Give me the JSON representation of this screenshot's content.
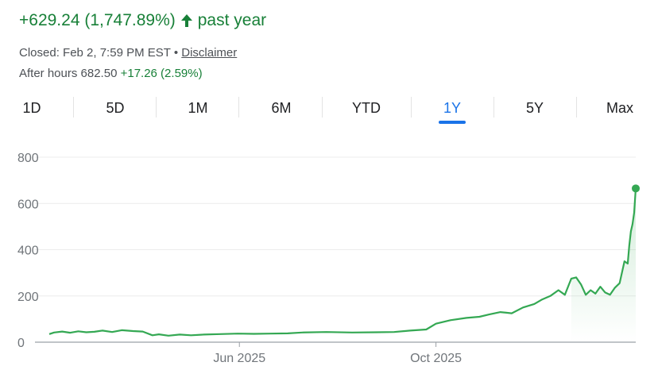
{
  "summary": {
    "change": "+629.24 (1,747.89%)",
    "period": "past year",
    "closed_text": "Closed: Feb 2, 7:59 PM EST •",
    "disclaimer": "Disclaimer",
    "after_hours_label": "After hours 682.50",
    "after_hours_change": "+17.26 (2.59%)"
  },
  "icons": {
    "up_arrow": "arrow-up-icon"
  },
  "colors": {
    "positive": "#188038",
    "line": "#34a853",
    "accent": "#1a73e8"
  },
  "tabs": [
    {
      "label": "1D",
      "active": false
    },
    {
      "label": "5D",
      "active": false
    },
    {
      "label": "1M",
      "active": false
    },
    {
      "label": "6M",
      "active": false
    },
    {
      "label": "YTD",
      "active": false
    },
    {
      "label": "1Y",
      "active": true
    },
    {
      "label": "5Y",
      "active": false
    },
    {
      "label": "Max",
      "active": false
    }
  ],
  "chart_data": {
    "type": "line",
    "title": "",
    "xlabel": "",
    "ylabel": "",
    "ylim": [
      0,
      800
    ],
    "yticks": [
      0,
      200,
      400,
      600,
      800
    ],
    "xtick_labels": [
      "Jun 2025",
      "Oct 2025"
    ],
    "xlim": [
      "2025-02-03",
      "2026-02-02"
    ],
    "grid": true,
    "series": [
      {
        "points": [
          [
            "2025-02-03",
            35
          ],
          [
            "2025-02-06",
            42
          ],
          [
            "2025-02-11",
            46
          ],
          [
            "2025-02-16",
            41
          ],
          [
            "2025-02-21",
            47
          ],
          [
            "2025-02-26",
            43
          ],
          [
            "2025-03-03",
            45
          ],
          [
            "2025-03-08",
            50
          ],
          [
            "2025-03-14",
            44
          ],
          [
            "2025-03-20",
            52
          ],
          [
            "2025-03-27",
            48
          ],
          [
            "2025-04-02",
            46
          ],
          [
            "2025-04-08",
            30
          ],
          [
            "2025-04-12",
            34
          ],
          [
            "2025-04-18",
            28
          ],
          [
            "2025-04-25",
            33
          ],
          [
            "2025-05-02",
            30
          ],
          [
            "2025-05-10",
            33
          ],
          [
            "2025-05-20",
            35
          ],
          [
            "2025-05-31",
            37
          ],
          [
            "2025-06-10",
            36
          ],
          [
            "2025-06-20",
            37
          ],
          [
            "2025-07-01",
            38
          ],
          [
            "2025-07-10",
            42
          ],
          [
            "2025-07-25",
            44
          ],
          [
            "2025-08-10",
            42
          ],
          [
            "2025-08-25",
            43
          ],
          [
            "2025-09-05",
            44
          ],
          [
            "2025-09-15",
            50
          ],
          [
            "2025-09-25",
            55
          ],
          [
            "2025-10-01",
            80
          ],
          [
            "2025-10-10",
            95
          ],
          [
            "2025-10-20",
            105
          ],
          [
            "2025-10-28",
            110
          ],
          [
            "2025-11-03",
            120
          ],
          [
            "2025-11-10",
            130
          ],
          [
            "2025-11-17",
            125
          ],
          [
            "2025-11-24",
            150
          ],
          [
            "2025-12-01",
            165
          ],
          [
            "2025-12-06",
            185
          ],
          [
            "2025-12-11",
            200
          ],
          [
            "2025-12-16",
            225
          ],
          [
            "2025-12-20",
            205
          ],
          [
            "2025-12-24",
            275
          ],
          [
            "2025-12-27",
            280
          ],
          [
            "2025-12-30",
            250
          ],
          [
            "2026-01-02",
            205
          ],
          [
            "2026-01-05",
            225
          ],
          [
            "2026-01-08",
            210
          ],
          [
            "2026-01-11",
            240
          ],
          [
            "2026-01-14",
            215
          ],
          [
            "2026-01-17",
            205
          ],
          [
            "2026-01-20",
            235
          ],
          [
            "2026-01-23",
            255
          ],
          [
            "2026-01-26",
            350
          ],
          [
            "2026-01-28",
            340
          ],
          [
            "2026-01-29",
            420
          ],
          [
            "2026-01-30",
            480
          ],
          [
            "2026-01-31",
            510
          ],
          [
            "2026-02-01",
            560
          ],
          [
            "2026-02-02",
            665
          ]
        ]
      }
    ]
  }
}
